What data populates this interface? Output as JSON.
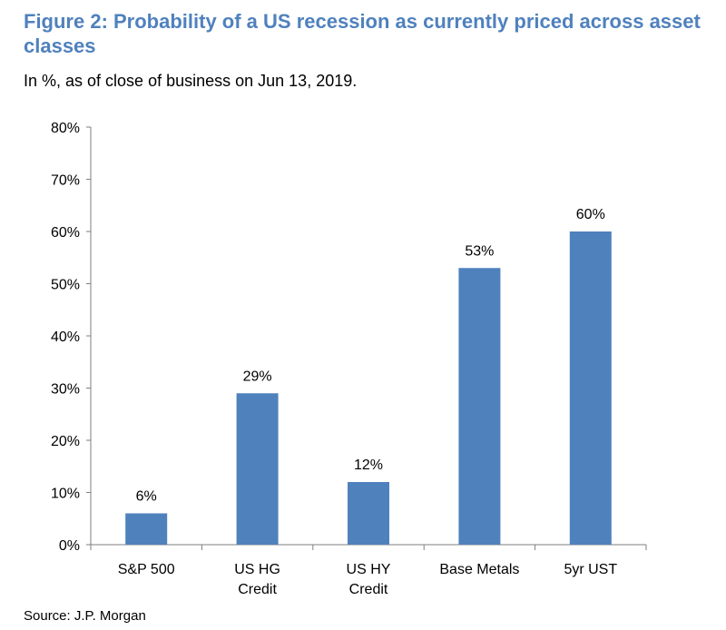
{
  "chart_data": {
    "type": "bar",
    "title": "Figure 2: Probability of a US recession as currently priced across asset classes",
    "subtitle": "In %, as of close of business on Jun 13, 2019.",
    "source": "Source:  J.P. Morgan",
    "categories": [
      "S&P 500",
      "US HG Credit",
      "US HY Credit",
      "Base Metals",
      "5yr UST"
    ],
    "category_lines": [
      [
        "S&P 500"
      ],
      [
        "US HG",
        "Credit"
      ],
      [
        "US HY",
        "Credit"
      ],
      [
        "Base Metals"
      ],
      [
        "5yr UST"
      ]
    ],
    "values": [
      6,
      29,
      12,
      53,
      60
    ],
    "data_labels": [
      "6%",
      "29%",
      "12%",
      "53%",
      "60%"
    ],
    "ylim": [
      0,
      80
    ],
    "yticks": [
      0,
      10,
      20,
      30,
      40,
      50,
      60,
      70,
      80
    ],
    "ytick_labels": [
      "0%",
      "10%",
      "20%",
      "30%",
      "40%",
      "50%",
      "60%",
      "70%",
      "80%"
    ],
    "bar_color": "#4f81bd",
    "grid": false,
    "legend": "none"
  }
}
